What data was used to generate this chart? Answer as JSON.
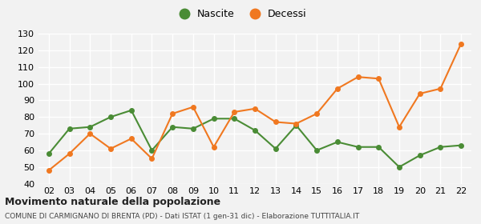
{
  "years": [
    "02",
    "03",
    "04",
    "05",
    "06",
    "07",
    "08",
    "09",
    "10",
    "11",
    "12",
    "13",
    "14",
    "15",
    "16",
    "17",
    "18",
    "19",
    "20",
    "21",
    "22"
  ],
  "nascite": [
    58,
    73,
    74,
    80,
    84,
    60,
    74,
    73,
    79,
    79,
    72,
    61,
    75,
    60,
    65,
    62,
    62,
    50,
    57,
    62,
    63
  ],
  "decessi": [
    48,
    58,
    70,
    61,
    67,
    55,
    82,
    86,
    62,
    83,
    85,
    77,
    76,
    82,
    97,
    104,
    103,
    74,
    94,
    97,
    124
  ],
  "nascite_color": "#4a8c35",
  "decessi_color": "#f07820",
  "background_color": "#f2f2f2",
  "grid_color": "#ffffff",
  "ylim": [
    40,
    130
  ],
  "yticks": [
    40,
    50,
    60,
    70,
    80,
    90,
    100,
    110,
    120,
    130
  ],
  "title": "Movimento naturale della popolazione",
  "subtitle": "COMUNE DI CARMIGNANO DI BRENTA (PD) - Dati ISTAT (1 gen-31 dic) - Elaborazione TUTTITALIA.IT",
  "legend_nascite": "Nascite",
  "legend_decessi": "Decessi",
  "marker_size": 4,
  "line_width": 1.5,
  "title_fontsize": 9,
  "subtitle_fontsize": 6.5,
  "tick_fontsize": 8,
  "legend_fontsize": 9
}
